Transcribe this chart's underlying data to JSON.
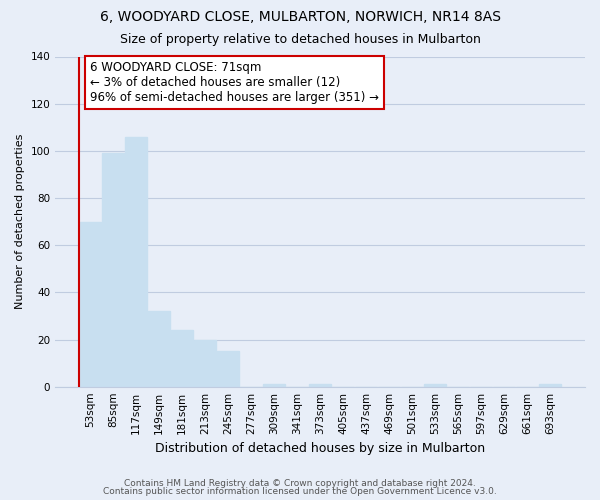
{
  "title": "6, WOODYARD CLOSE, MULBARTON, NORWICH, NR14 8AS",
  "subtitle": "Size of property relative to detached houses in Mulbarton",
  "xlabel": "Distribution of detached houses by size in Mulbarton",
  "ylabel": "Number of detached properties",
  "bar_labels": [
    "53sqm",
    "85sqm",
    "117sqm",
    "149sqm",
    "181sqm",
    "213sqm",
    "245sqm",
    "277sqm",
    "309sqm",
    "341sqm",
    "373sqm",
    "405sqm",
    "437sqm",
    "469sqm",
    "501sqm",
    "533sqm",
    "565sqm",
    "597sqm",
    "629sqm",
    "661sqm",
    "693sqm"
  ],
  "bar_values": [
    70,
    99,
    106,
    32,
    24,
    20,
    15,
    0,
    1,
    0,
    1,
    0,
    0,
    0,
    0,
    1,
    0,
    0,
    0,
    0,
    1
  ],
  "bar_color": "#c8dff0",
  "vline_color": "#cc0000",
  "vline_x": -0.5,
  "ylim": [
    0,
    140
  ],
  "yticks": [
    0,
    20,
    40,
    60,
    80,
    100,
    120,
    140
  ],
  "annotation_text": "6 WOODYARD CLOSE: 71sqm\n← 3% of detached houses are smaller (12)\n96% of semi-detached houses are larger (351) →",
  "annotation_box_color": "white",
  "annotation_box_edgecolor": "#cc0000",
  "footer_line1": "Contains HM Land Registry data © Crown copyright and database right 2024.",
  "footer_line2": "Contains public sector information licensed under the Open Government Licence v3.0.",
  "background_color": "#e8eef8",
  "grid_color": "#c0cce0",
  "title_fontsize": 10,
  "subtitle_fontsize": 9,
  "xlabel_fontsize": 9,
  "ylabel_fontsize": 8,
  "tick_fontsize": 7.5,
  "annotation_fontsize": 8.5,
  "footer_fontsize": 6.5
}
